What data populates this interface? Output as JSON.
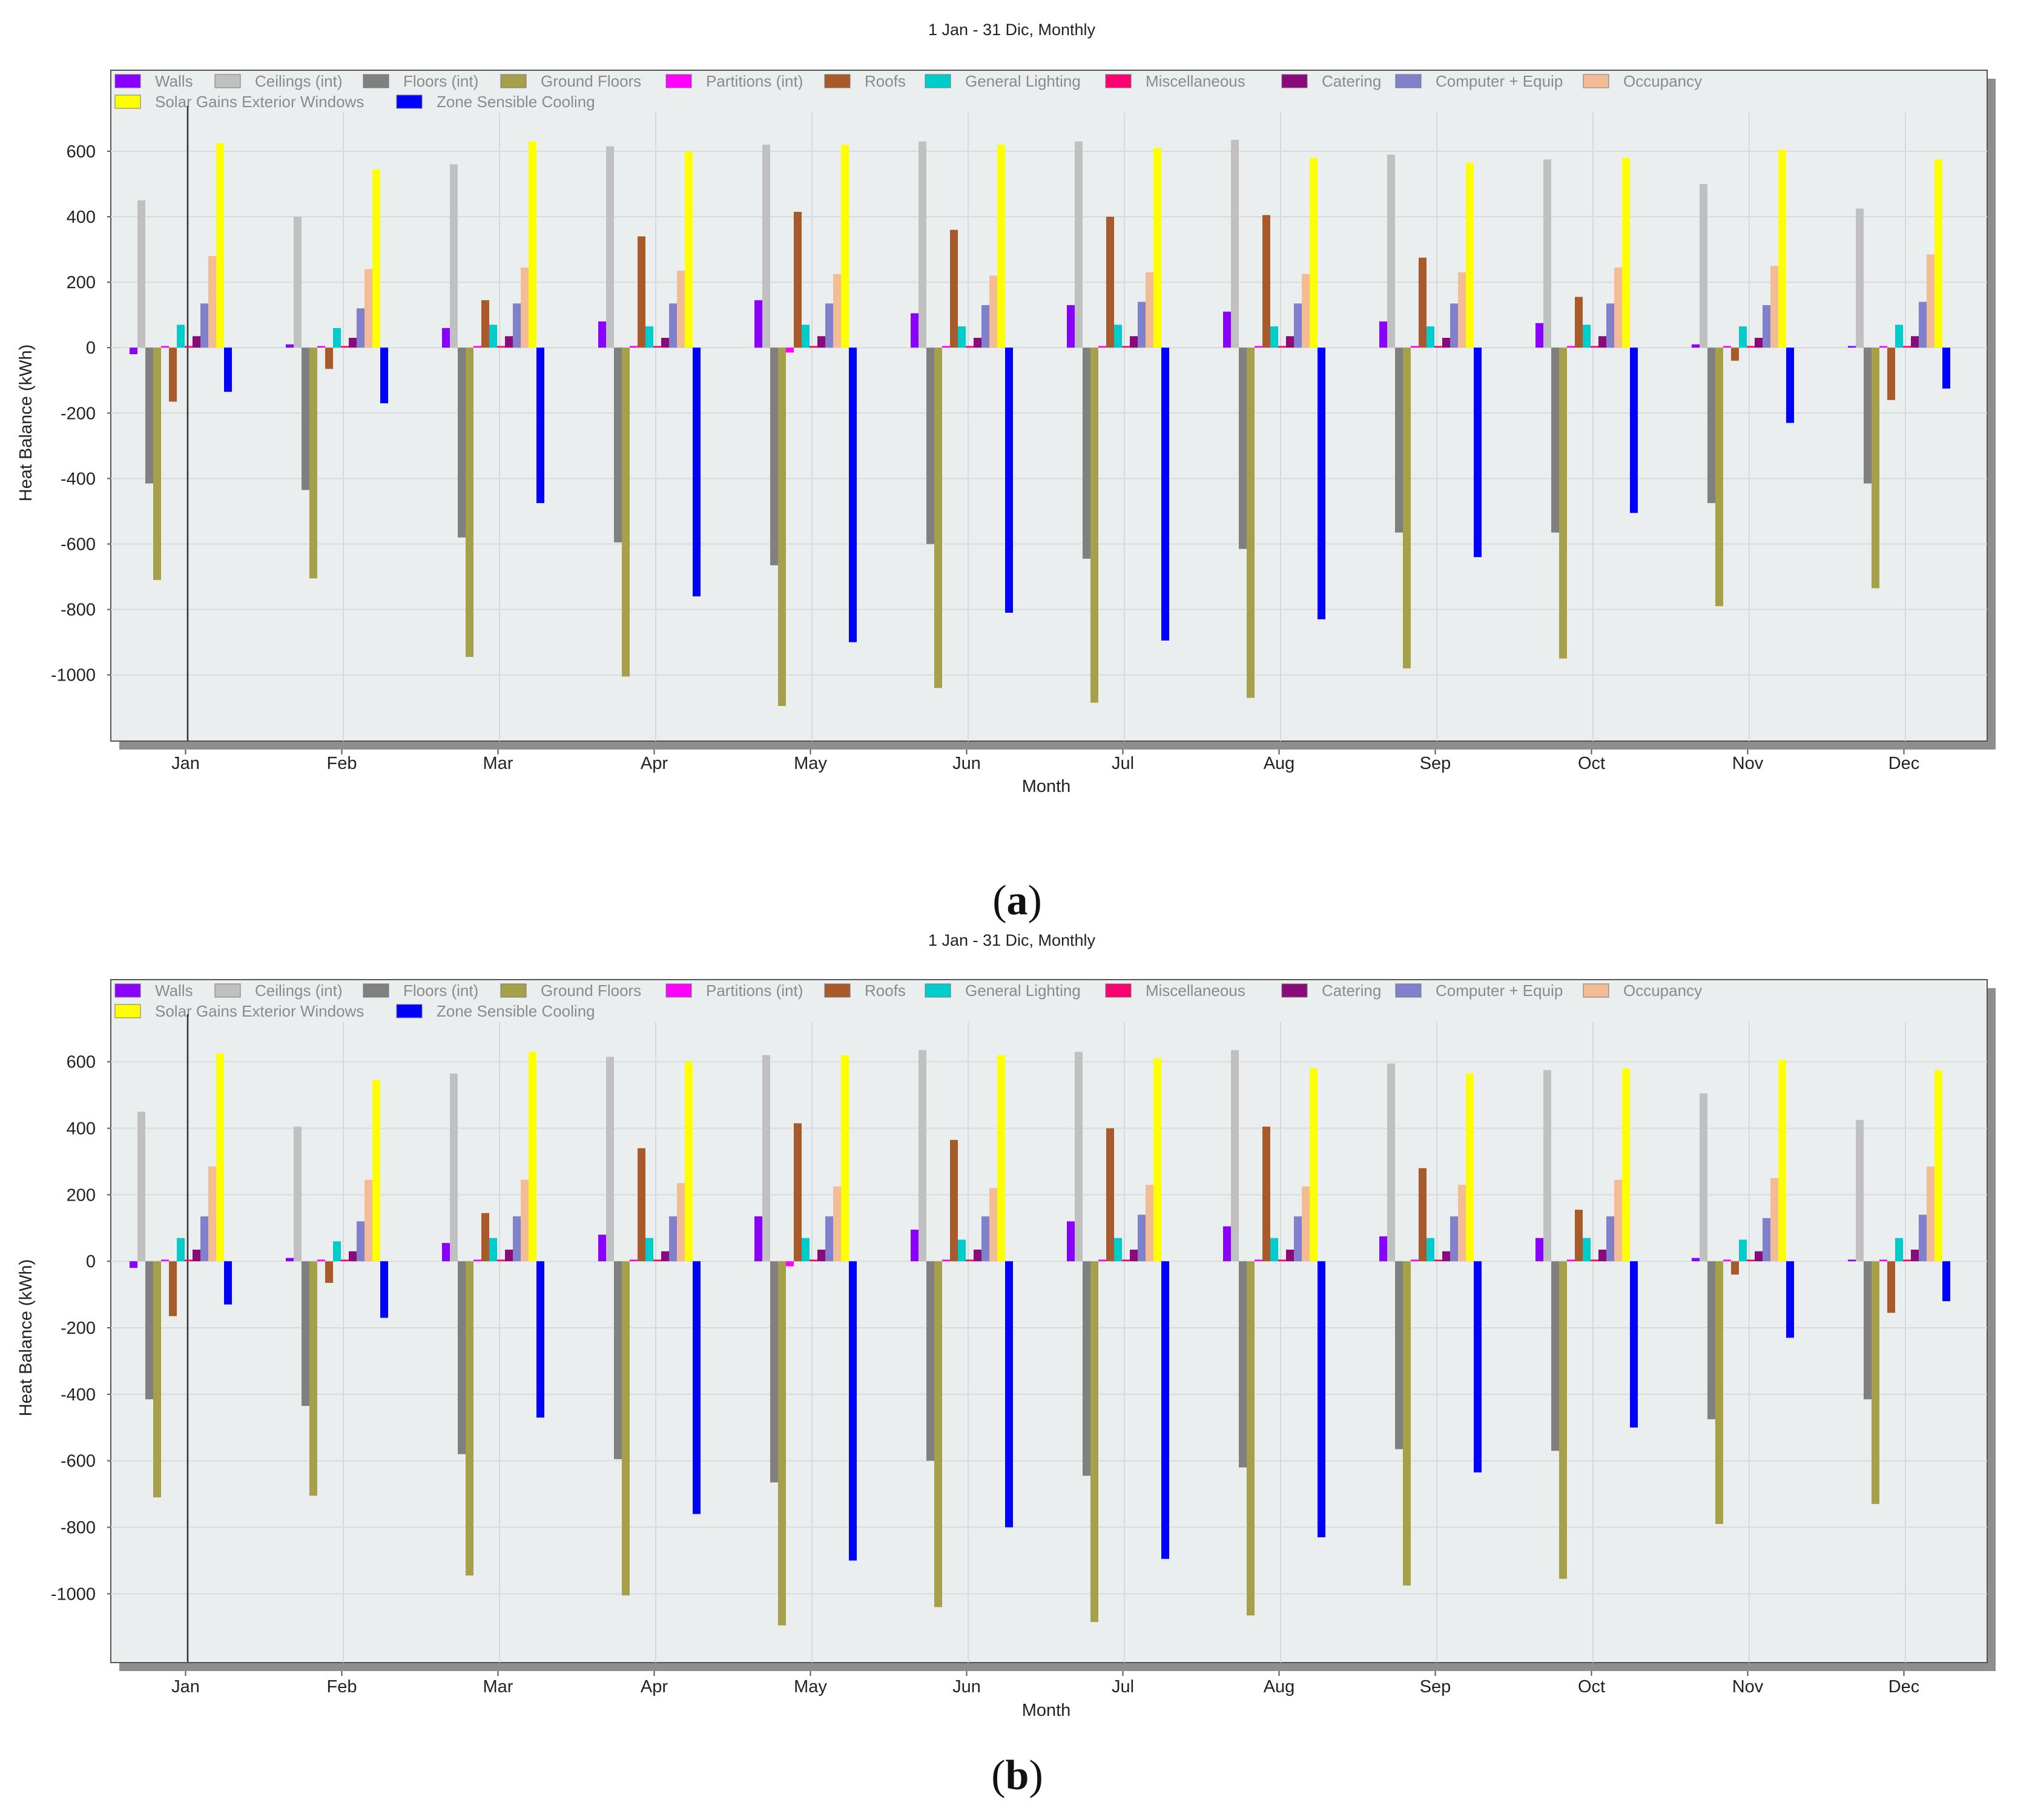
{
  "series_meta": [
    {
      "name": "Walls",
      "color": "#8A00FF"
    },
    {
      "name": "Ceilings (int)",
      "color": "#C0C0C0"
    },
    {
      "name": "Floors (int)",
      "color": "#808080"
    },
    {
      "name": "Ground Floors",
      "color": "#A6A04A"
    },
    {
      "name": "Partitions (int)",
      "color": "#FF00FF"
    },
    {
      "name": "Roofs",
      "color": "#A95A2A"
    },
    {
      "name": "General Lighting",
      "color": "#00CCCC"
    },
    {
      "name": "Miscellaneous",
      "color": "#FF0070"
    },
    {
      "name": "Catering",
      "color": "#8B0A7A"
    },
    {
      "name": "Computer + Equip",
      "color": "#8080CC"
    },
    {
      "name": "Occupancy",
      "color": "#F4BC94"
    },
    {
      "name": "Solar Gains Exterior Windows",
      "color": "#FFFF00"
    },
    {
      "name": "Zone Sensible Cooling",
      "color": "#0000FF"
    }
  ],
  "chart_data": [
    {
      "panel_label": "a",
      "type": "bar",
      "title": "1 Jan - 31 Dic, Monthly",
      "xlabel": "Month",
      "ylabel": "Heat Balance (kWh)",
      "ylim": [
        -1180,
        720
      ],
      "yticks": [
        600,
        400,
        200,
        0,
        -200,
        -400,
        -600,
        -800,
        -1000
      ],
      "grid": true,
      "legend_position": "top-left",
      "categories": [
        "Jan",
        "Feb",
        "Mar",
        "Apr",
        "May",
        "Jun",
        "Jul",
        "Aug",
        "Sep",
        "Oct",
        "Nov",
        "Dec"
      ],
      "series": [
        {
          "name": "Walls",
          "values": [
            -20,
            10,
            60,
            80,
            145,
            105,
            130,
            110,
            80,
            75,
            10,
            5
          ]
        },
        {
          "name": "Ceilings (int)",
          "values": [
            450,
            400,
            560,
            615,
            620,
            630,
            630,
            635,
            590,
            575,
            500,
            425
          ]
        },
        {
          "name": "Floors (int)",
          "values": [
            -415,
            -435,
            -580,
            -595,
            -665,
            -600,
            -645,
            -615,
            -565,
            -565,
            -475,
            -415
          ]
        },
        {
          "name": "Ground Floors",
          "values": [
            -710,
            -705,
            -945,
            -1005,
            -1095,
            -1040,
            -1085,
            -1070,
            -980,
            -950,
            -790,
            -735
          ]
        },
        {
          "name": "Partitions (int)",
          "values": [
            5,
            5,
            5,
            5,
            -15,
            5,
            5,
            5,
            5,
            5,
            5,
            5
          ]
        },
        {
          "name": "Roofs",
          "values": [
            -165,
            -65,
            145,
            340,
            415,
            360,
            400,
            405,
            275,
            155,
            -40,
            -160
          ]
        },
        {
          "name": "General Lighting",
          "values": [
            70,
            60,
            70,
            65,
            70,
            65,
            70,
            65,
            65,
            70,
            65,
            70
          ]
        },
        {
          "name": "Miscellaneous",
          "values": [
            5,
            5,
            5,
            5,
            5,
            5,
            5,
            5,
            5,
            5,
            5,
            5
          ]
        },
        {
          "name": "Catering",
          "values": [
            35,
            30,
            35,
            30,
            35,
            30,
            35,
            35,
            30,
            35,
            30,
            35
          ]
        },
        {
          "name": "Computer + Equip",
          "values": [
            135,
            120,
            135,
            135,
            135,
            130,
            140,
            135,
            135,
            135,
            130,
            140
          ]
        },
        {
          "name": "Occupancy",
          "values": [
            280,
            240,
            245,
            235,
            225,
            220,
            230,
            225,
            230,
            245,
            250,
            285
          ]
        },
        {
          "name": "Solar Gains Exterior Windows",
          "values": [
            625,
            545,
            630,
            600,
            620,
            620,
            610,
            580,
            565,
            580,
            605,
            575
          ]
        },
        {
          "name": "Zone Sensible Cooling",
          "values": [
            -135,
            -170,
            -475,
            -760,
            -900,
            -810,
            -895,
            -830,
            -640,
            -505,
            -230,
            -125
          ]
        }
      ]
    },
    {
      "panel_label": "b",
      "type": "bar",
      "title": "1 Jan  - 31 Dic, Monthly",
      "xlabel": "Month",
      "ylabel": "Heat Balance (kWh)",
      "ylim": [
        -1185,
        725
      ],
      "yticks": [
        600,
        400,
        200,
        0,
        -200,
        -400,
        -600,
        -800,
        -1000
      ],
      "grid": true,
      "legend_position": "top-left",
      "categories": [
        "Jan",
        "Feb",
        "Mar",
        "Apr",
        "May",
        "Jun",
        "Jul",
        "Aug",
        "Sep",
        "Oct",
        "Nov",
        "Dec"
      ],
      "series": [
        {
          "name": "Walls",
          "values": [
            -20,
            10,
            55,
            80,
            135,
            95,
            120,
            105,
            75,
            70,
            10,
            5
          ]
        },
        {
          "name": "Ceilings (int)",
          "values": [
            450,
            405,
            565,
            615,
            620,
            635,
            630,
            635,
            595,
            575,
            505,
            425
          ]
        },
        {
          "name": "Floors (int)",
          "values": [
            -415,
            -435,
            -580,
            -595,
            -665,
            -600,
            -645,
            -620,
            -565,
            -570,
            -475,
            -415
          ]
        },
        {
          "name": "Ground Floors",
          "values": [
            -710,
            -705,
            -945,
            -1005,
            -1095,
            -1040,
            -1085,
            -1065,
            -975,
            -955,
            -790,
            -730
          ]
        },
        {
          "name": "Partitions (int)",
          "values": [
            5,
            5,
            5,
            5,
            -15,
            5,
            5,
            5,
            5,
            5,
            5,
            5
          ]
        },
        {
          "name": "Roofs",
          "values": [
            -165,
            -65,
            145,
            340,
            415,
            365,
            400,
            405,
            280,
            155,
            -40,
            -155
          ]
        },
        {
          "name": "General Lighting",
          "values": [
            70,
            60,
            70,
            70,
            70,
            65,
            70,
            70,
            70,
            70,
            65,
            70
          ]
        },
        {
          "name": "Miscellaneous",
          "values": [
            5,
            5,
            5,
            5,
            5,
            5,
            5,
            5,
            5,
            5,
            5,
            5
          ]
        },
        {
          "name": "Catering",
          "values": [
            35,
            30,
            35,
            30,
            35,
            35,
            35,
            35,
            30,
            35,
            30,
            35
          ]
        },
        {
          "name": "Computer + Equip",
          "values": [
            135,
            120,
            135,
            135,
            135,
            135,
            140,
            135,
            135,
            135,
            130,
            140
          ]
        },
        {
          "name": "Occupancy",
          "values": [
            285,
            245,
            245,
            235,
            225,
            220,
            230,
            225,
            230,
            245,
            250,
            285
          ]
        },
        {
          "name": "Solar Gains Exterior Windows",
          "values": [
            625,
            545,
            630,
            600,
            620,
            620,
            610,
            580,
            565,
            580,
            605,
            575
          ]
        },
        {
          "name": "Zone Sensible Cooling",
          "values": [
            -130,
            -170,
            -470,
            -760,
            -900,
            -800,
            -895,
            -830,
            -635,
            -500,
            -230,
            -120
          ]
        }
      ]
    }
  ]
}
